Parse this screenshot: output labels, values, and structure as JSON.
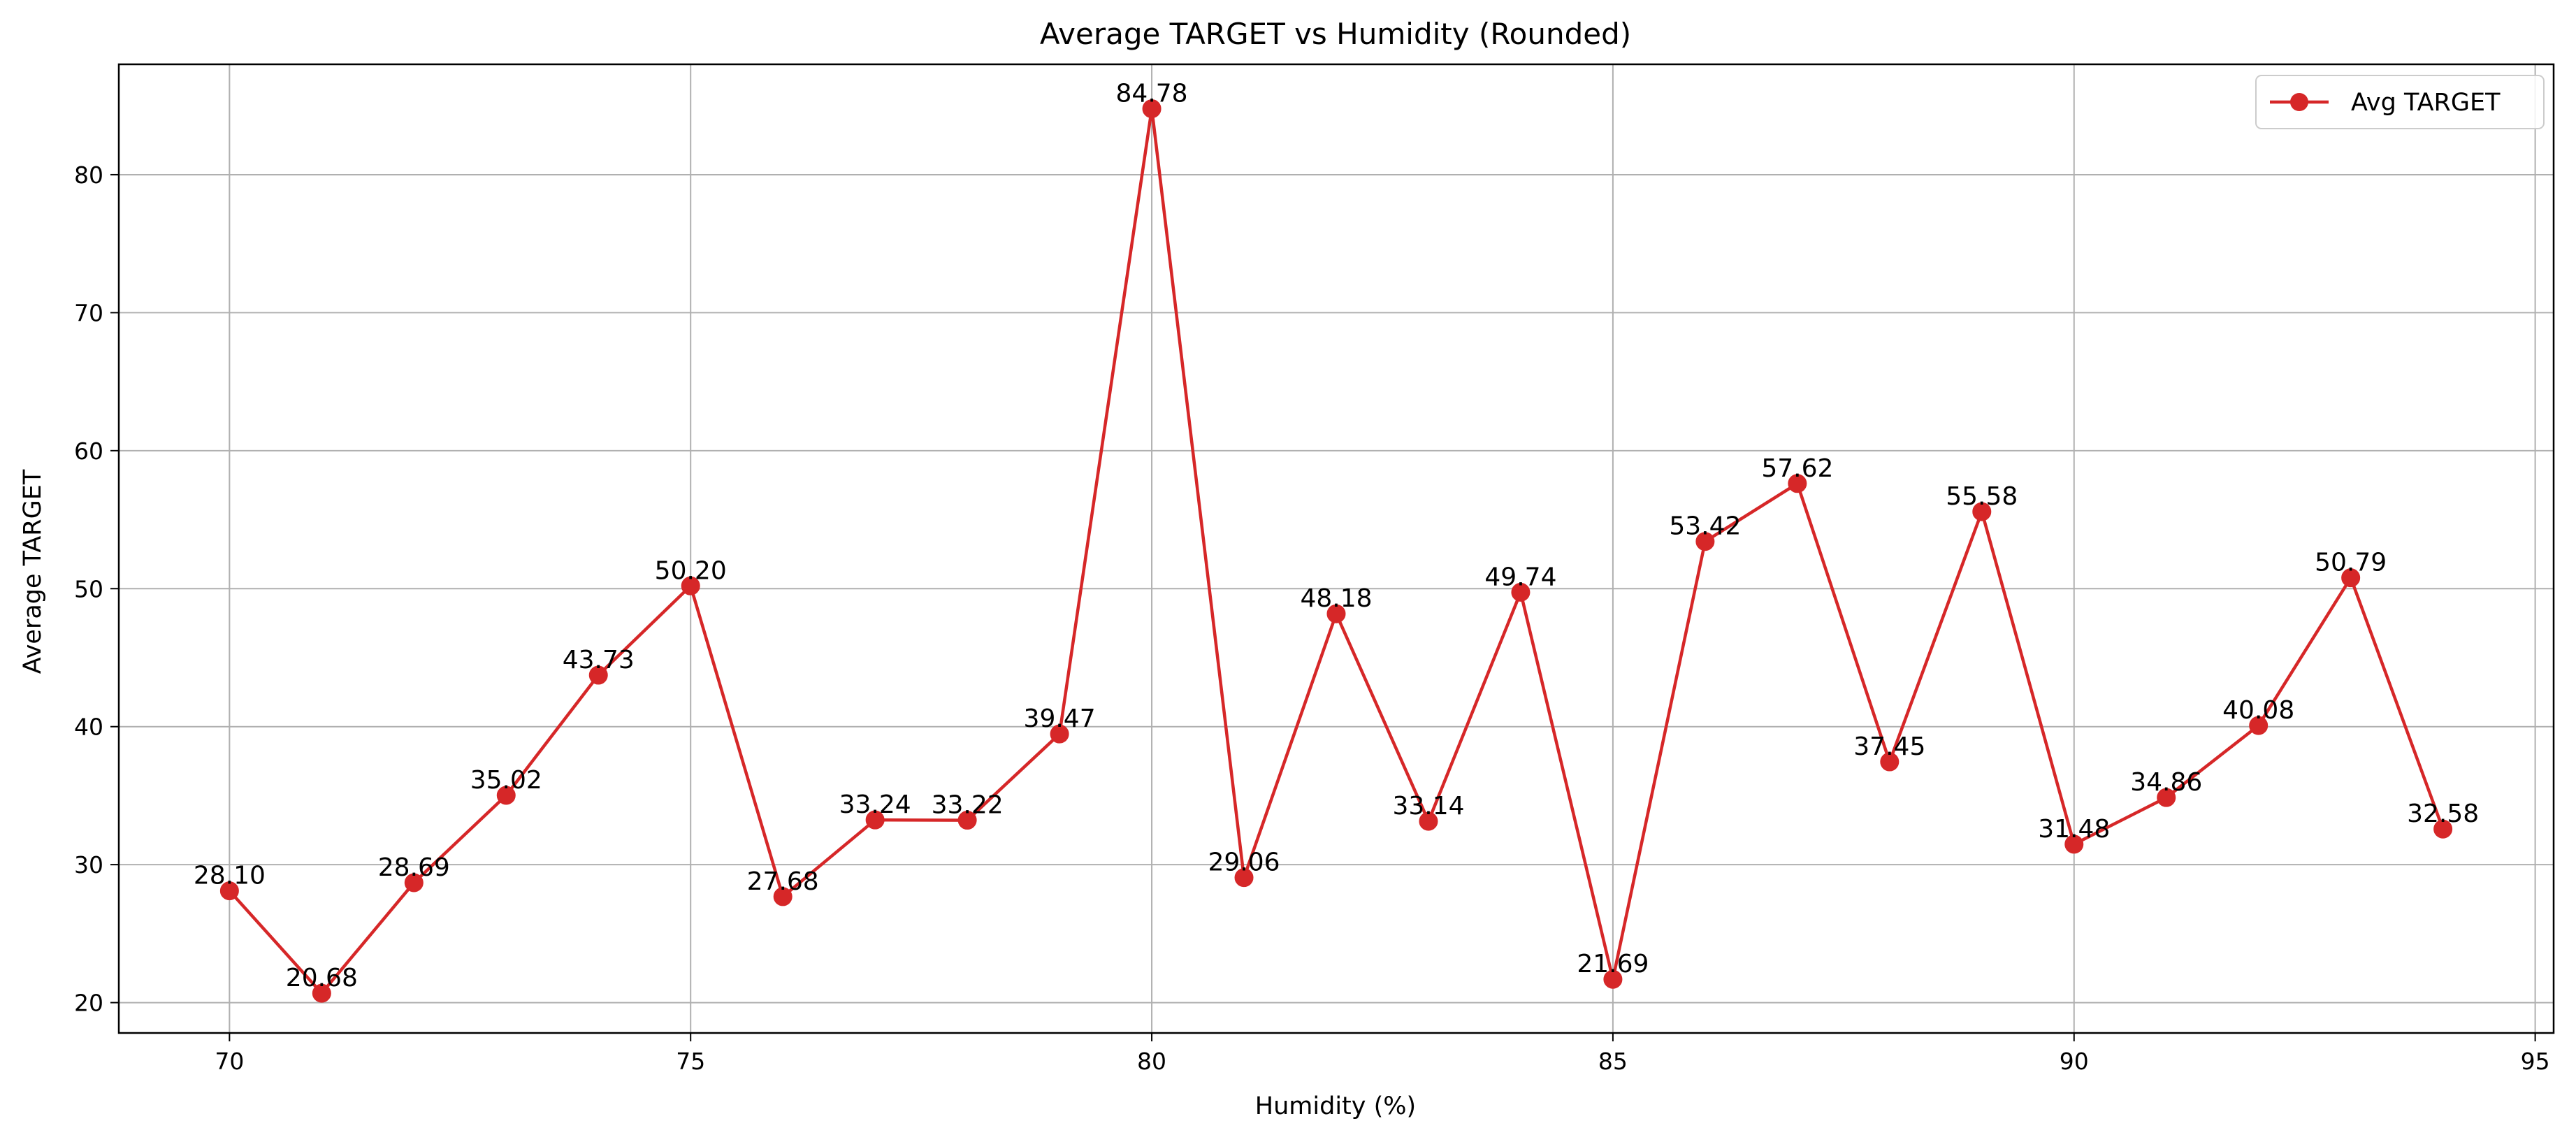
{
  "chart_data": {
    "type": "line",
    "title": "Average TARGET vs Humidity (Rounded)",
    "xlabel": "Humidity (%)",
    "ylabel": "Average TARGET",
    "xlim": [
      68.8,
      95.2
    ],
    "ylim": [
      17.8,
      88.0
    ],
    "xticks": [
      70,
      75,
      80,
      85,
      90,
      95
    ],
    "yticks": [
      20,
      30,
      40,
      50,
      60,
      70,
      80
    ],
    "grid": true,
    "legend_position": "top-right",
    "series": [
      {
        "name": "Avg TARGET",
        "color": "#d62728",
        "x": [
          70,
          71,
          72,
          73,
          74,
          75,
          76,
          77,
          78,
          79,
          80,
          81,
          82,
          83,
          84,
          85,
          86,
          87,
          88,
          89,
          90,
          91,
          92,
          93,
          94
        ],
        "y": [
          28.1,
          20.68,
          28.69,
          35.02,
          43.73,
          50.2,
          27.68,
          33.24,
          33.22,
          39.47,
          84.78,
          29.06,
          48.18,
          33.14,
          49.74,
          21.69,
          53.42,
          57.62,
          37.45,
          55.58,
          31.48,
          34.86,
          40.08,
          50.79,
          32.58
        ],
        "labels": [
          "28.10",
          "20.68",
          "28.69",
          "35.02",
          "43.73",
          "50.20",
          "27.68",
          "33.24",
          "33.22",
          "39.47",
          "84.78",
          "29.06",
          "48.18",
          "33.14",
          "49.74",
          "21.69",
          "53.42",
          "57.62",
          "37.45",
          "55.58",
          "31.48",
          "34.86",
          "40.08",
          "50.79",
          "32.58"
        ]
      }
    ]
  }
}
